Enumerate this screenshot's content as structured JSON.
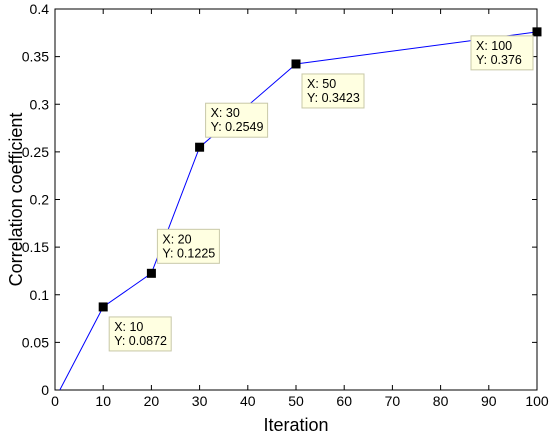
{
  "chart_data": {
    "type": "line",
    "title": "",
    "xlabel": "Iteration",
    "ylabel": "Correlation coefficient",
    "xlim": [
      0,
      100
    ],
    "ylim": [
      0,
      0.4
    ],
    "xticks": [
      "0",
      "10",
      "20",
      "30",
      "40",
      "50",
      "60",
      "70",
      "80",
      "90",
      "100"
    ],
    "yticks": [
      "0",
      "0.05",
      "0.1",
      "0.15",
      "0.2",
      "0.25",
      "0.3",
      "0.35",
      "0.4"
    ],
    "grid": false,
    "legend": "none",
    "line_color": "#0000ff",
    "series": [
      {
        "x": [
          1,
          10,
          20,
          30,
          50,
          100
        ],
        "y": [
          0,
          0.0872,
          0.1225,
          0.2549,
          0.3423,
          0.376
        ]
      }
    ],
    "markers": [
      {
        "x": 10,
        "y": 0.0872
      },
      {
        "x": 20,
        "y": 0.1225
      },
      {
        "x": 30,
        "y": 0.2549
      },
      {
        "x": 50,
        "y": 0.3423
      },
      {
        "x": 100,
        "y": 0.376
      }
    ],
    "datatips": [
      {
        "x_text": "X: 10",
        "y_text": "Y: 0.0872",
        "anchor_x": 10,
        "anchor_y": 0.0872,
        "side": "below-right"
      },
      {
        "x_text": "X: 20",
        "y_text": "Y: 0.1225",
        "anchor_x": 20,
        "anchor_y": 0.1225,
        "side": "above-right"
      },
      {
        "x_text": "X: 30",
        "y_text": "Y: 0.2549",
        "anchor_x": 30,
        "anchor_y": 0.2549,
        "side": "above-right"
      },
      {
        "x_text": "X: 50",
        "y_text": "Y: 0.3423",
        "anchor_x": 50,
        "anchor_y": 0.3423,
        "side": "below-right"
      },
      {
        "x_text": "X: 100",
        "y_text": "Y: 0.376",
        "anchor_x": 100,
        "anchor_y": 0.376,
        "side": "below-left"
      }
    ]
  }
}
